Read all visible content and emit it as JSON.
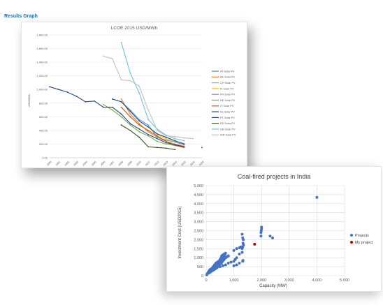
{
  "page": {
    "title": "Results Graph"
  },
  "chart_data": [
    {
      "type": "line",
      "title": "LCOE 2015 USD/MWh",
      "ylabel": "USD/MWh",
      "xlabel": "",
      "ylim": [
        0,
        1800
      ],
      "yticks": [
        0,
        200,
        400,
        600,
        800,
        1000,
        1200,
        1400,
        1600,
        1800
      ],
      "ytick_labels": [
        "0.00",
        "200.00",
        "400.00",
        "600.00",
        "800.00",
        "1,000.00",
        "1,200.00",
        "1,400.00",
        "1,600.00",
        "1,800.00"
      ],
      "categories": [
        "2000",
        "2001",
        "2002",
        "2003",
        "2004",
        "2005",
        "2006",
        "2007",
        "2008",
        "2009",
        "2010",
        "2011",
        "2012",
        "2013",
        "2014",
        "2015",
        "2016",
        "2020"
      ],
      "grid": true,
      "legend_position": "right",
      "series": [
        {
          "name": "AT Solar PV",
          "color": "#4e8ac8",
          "values": [
            null,
            null,
            null,
            null,
            null,
            null,
            null,
            null,
            null,
            null,
            null,
            null,
            null,
            null,
            null,
            null,
            null,
            null
          ]
        },
        {
          "name": "BE Solar PV",
          "color": "#ed7d31",
          "values": [
            null,
            null,
            null,
            null,
            null,
            null,
            null,
            null,
            860,
            640,
            500,
            380,
            300,
            240,
            200,
            170,
            null,
            null
          ]
        },
        {
          "name": "CH Solar PV",
          "color": "#a5a5a5",
          "values": [
            null,
            null,
            null,
            null,
            null,
            null,
            null,
            null,
            null,
            null,
            null,
            null,
            null,
            null,
            null,
            null,
            null,
            null
          ]
        },
        {
          "name": "FI Solar PV",
          "color": "#ffc000",
          "values": [
            null,
            null,
            null,
            null,
            null,
            null,
            null,
            null,
            null,
            null,
            null,
            450,
            340,
            280,
            240,
            210,
            null,
            null
          ]
        },
        {
          "name": "FR Solar PV",
          "color": "#5b9bd5",
          "values": [
            null,
            null,
            null,
            null,
            null,
            null,
            null,
            860,
            820,
            700,
            560,
            480,
            300,
            260,
            230,
            190,
            null,
            null
          ]
        },
        {
          "name": "DE Solar PV",
          "color": "#70ad47",
          "values": [
            null,
            null,
            null,
            null,
            null,
            null,
            780,
            700,
            600,
            480,
            380,
            320,
            240,
            200,
            180,
            160,
            null,
            null
          ]
        },
        {
          "name": "IT Solar PV",
          "color": "#c55a11",
          "values": [
            null,
            null,
            null,
            null,
            null,
            null,
            null,
            null,
            740,
            600,
            480,
            400,
            320,
            240,
            180,
            150,
            null,
            null
          ]
        },
        {
          "name": "NL Solar PV",
          "color": "#264478",
          "values": [
            1040,
            1000,
            960,
            900,
            820,
            830,
            740,
            740,
            640,
            500,
            420,
            340,
            280,
            220,
            190,
            160,
            null,
            null
          ]
        },
        {
          "name": "PT Solar PV",
          "color": "#1f4e79",
          "values": [
            null,
            null,
            null,
            null,
            null,
            null,
            null,
            860,
            820,
            680,
            540,
            450,
            350,
            300,
            250,
            200,
            null,
            150
          ]
        },
        {
          "name": "ES Solar PV",
          "color": "#375623",
          "values": [
            null,
            null,
            null,
            null,
            null,
            null,
            null,
            null,
            480,
            400,
            300,
            160,
            150,
            140,
            120,
            null,
            null,
            null
          ]
        },
        {
          "name": "GB Solar PV",
          "color": "#6dc0e5",
          "values": [
            null,
            null,
            null,
            null,
            null,
            null,
            null,
            null,
            1690,
            1240,
            950,
            560,
            420,
            330,
            280,
            250,
            null,
            null
          ]
        },
        {
          "name": "ISR Solar PV",
          "color": "#bfbfbf",
          "values": [
            null,
            null,
            null,
            null,
            null,
            null,
            1490,
            1450,
            1140,
            1130,
            1050,
            700,
            400,
            320,
            310,
            290,
            280,
            null
          ]
        }
      ]
    },
    {
      "type": "scatter",
      "title": "Coal-fired projects in India",
      "xlabel": "Capacity (MW)",
      "ylabel": "Investment Cost (USD2015)",
      "xlim": [
        0,
        5000
      ],
      "ylim": [
        0,
        5000
      ],
      "xticks": [
        0,
        1000,
        2000,
        3000,
        4000,
        5000
      ],
      "xtick_labels": [
        "0",
        "1,000",
        "2,000",
        "3,000",
        "4,000",
        "5,000"
      ],
      "yticks": [
        0,
        500,
        1000,
        1500,
        2000,
        2500,
        3000,
        3500,
        4000,
        4500,
        5000
      ],
      "ytick_labels": [
        "0",
        "500",
        "1,000",
        "1,500",
        "2,000",
        "2,500",
        "3,000",
        "3,500",
        "4,000",
        "4,500",
        "5,000"
      ],
      "grid": true,
      "legend_position": "right",
      "series": [
        {
          "name": "Projects",
          "color": "#4472c4",
          "x": [
            20,
            40,
            60,
            80,
            100,
            120,
            150,
            200,
            250,
            300,
            350,
            400,
            450,
            500,
            520,
            540,
            560,
            600,
            650,
            700,
            100,
            150,
            200,
            250,
            300,
            350,
            400,
            450,
            500,
            550,
            600,
            650,
            700,
            750,
            800,
            300,
            350,
            400,
            450,
            500,
            550,
            600,
            200,
            250,
            300,
            350,
            400,
            500,
            600,
            700,
            800,
            900,
            1000,
            1050,
            1100,
            1200,
            1300,
            1320,
            1330,
            1340,
            1000,
            1100,
            1200,
            1250,
            1300,
            1350,
            1320,
            1300,
            1980,
            1980,
            2000,
            2000,
            1990,
            2310,
            2400,
            4000,
            600,
            650,
            700,
            750,
            800,
            500,
            520,
            540,
            560,
            580,
            600,
            620,
            640,
            660,
            680,
            1000,
            1100,
            1200,
            1320,
            1330
          ],
          "y": [
            50,
            100,
            150,
            200,
            250,
            300,
            350,
            400,
            500,
            550,
            600,
            650,
            700,
            800,
            900,
            1000,
            1100,
            1150,
            1200,
            1250,
            150,
            200,
            300,
            350,
            400,
            450,
            500,
            600,
            650,
            700,
            800,
            900,
            1000,
            1050,
            1100,
            600,
            700,
            750,
            800,
            900,
            1000,
            1100,
            250,
            300,
            350,
            400,
            450,
            500,
            550,
            600,
            700,
            750,
            800,
            900,
            1000,
            1200,
            1300,
            1600,
            1800,
            2000,
            1400,
            1500,
            1550,
            1600,
            1500,
            1700,
            2100,
            2300,
            2200,
            2400,
            2600,
            2700,
            2500,
            2200,
            2100,
            4350,
            900,
            950,
            1000,
            1050,
            1100,
            750,
            800,
            850,
            900,
            950,
            1000,
            1050,
            1100,
            1150,
            1200,
            550,
            600,
            700,
            800,
            850
          ]
        },
        {
          "name": "My project",
          "color": "#c00000",
          "x": [
            1750
          ],
          "y": [
            1750
          ]
        }
      ]
    }
  ]
}
